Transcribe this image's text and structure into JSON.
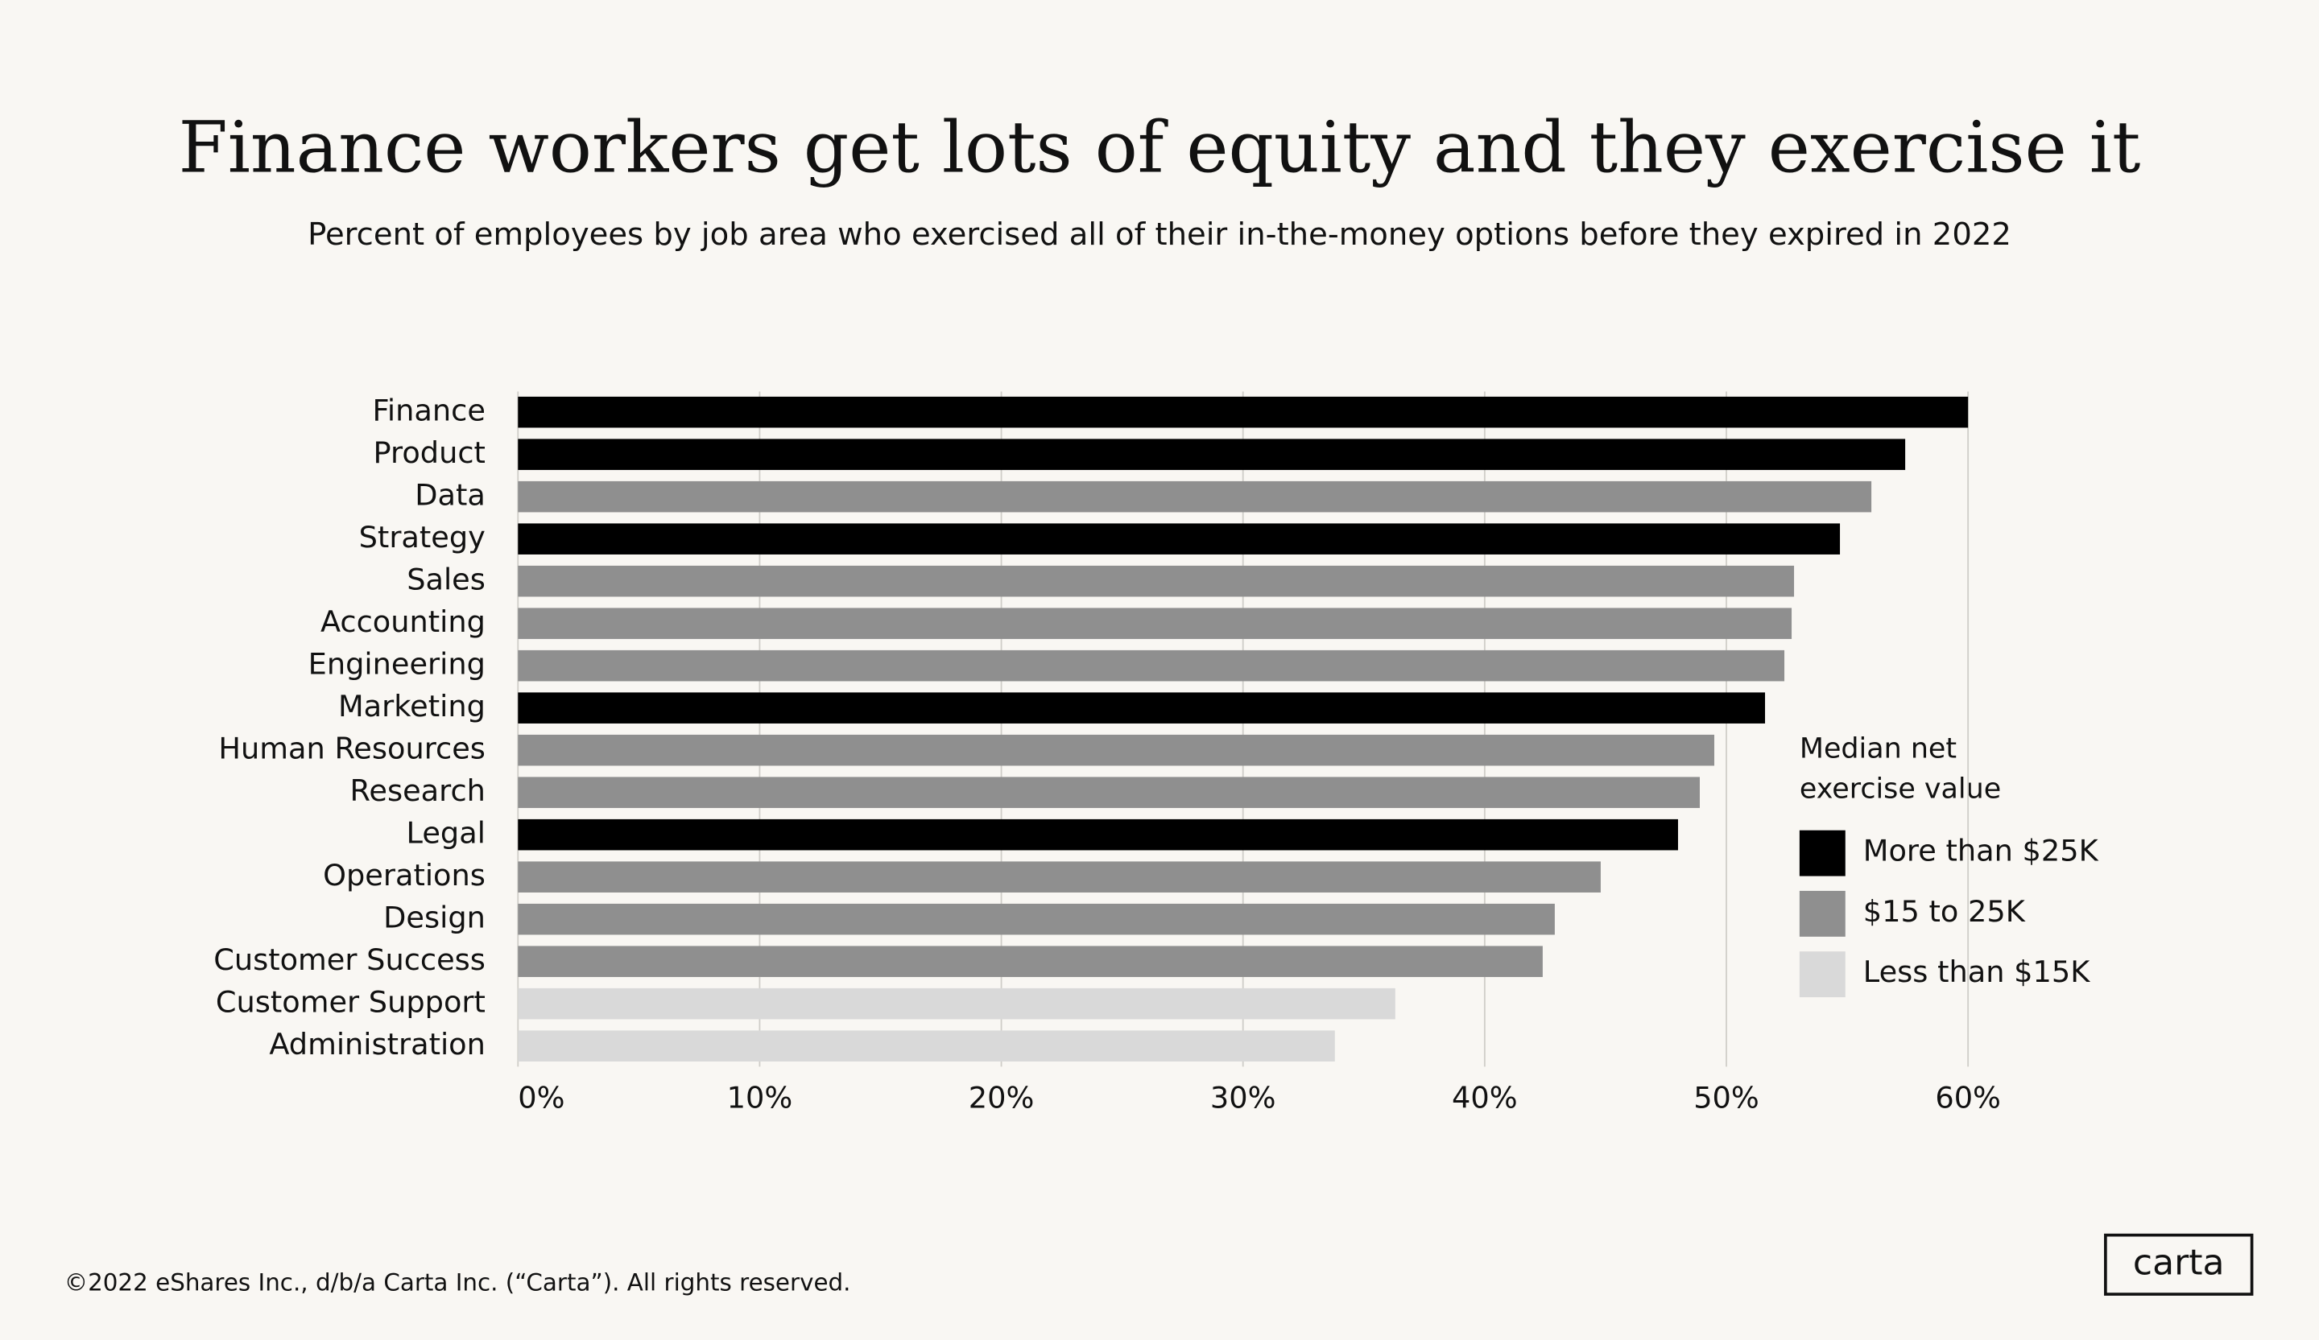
{
  "chart_data": {
    "type": "bar",
    "orientation": "horizontal",
    "title": "Finance workers get lots of equity and they exercise it",
    "subtitle": "Percent of employees by job area who exercised all of their in-the-money options before they expired in 2022",
    "categories": [
      "Finance",
      "Product",
      "Data",
      "Strategy",
      "Sales",
      "Accounting",
      "Engineering",
      "Marketing",
      "Human Resources",
      "Research",
      "Legal",
      "Operations",
      "Design",
      "Customer Success",
      "Customer Support",
      "Administration"
    ],
    "legend_title": "Median net exercise value",
    "series": [
      {
        "name": "More than $25K",
        "color": "#000000",
        "values": [
          60.0,
          57.4,
          null,
          54.7,
          null,
          null,
          null,
          51.6,
          null,
          null,
          48.0,
          null,
          null,
          null,
          null,
          null
        ]
      },
      {
        "name": "$15 to 25K",
        "color": "#8f8f8f",
        "values": [
          null,
          null,
          56.0,
          null,
          52.8,
          52.7,
          52.4,
          null,
          49.5,
          48.9,
          null,
          44.8,
          42.9,
          42.4,
          null,
          null
        ]
      },
      {
        "name": "Less than $15K",
        "color": "#d9d9d9",
        "values": [
          null,
          null,
          null,
          null,
          null,
          null,
          null,
          null,
          null,
          null,
          null,
          null,
          null,
          null,
          36.3,
          33.8
        ]
      }
    ],
    "xlim": [
      0,
      60
    ],
    "xticks": [
      {
        "value": 0,
        "label": "0%"
      },
      {
        "value": 10,
        "label": "10%"
      },
      {
        "value": 20,
        "label": "20%"
      },
      {
        "value": 30,
        "label": "30%"
      },
      {
        "value": 40,
        "label": "40%"
      },
      {
        "value": 50,
        "label": "50%"
      },
      {
        "value": 60,
        "label": "60%"
      }
    ],
    "grid": true,
    "legend_position": "right"
  },
  "footer": {
    "copyright": "©2022 eShares Inc., d/b/a Carta Inc. (“Carta”). All rights reserved.",
    "logo": "carta"
  }
}
